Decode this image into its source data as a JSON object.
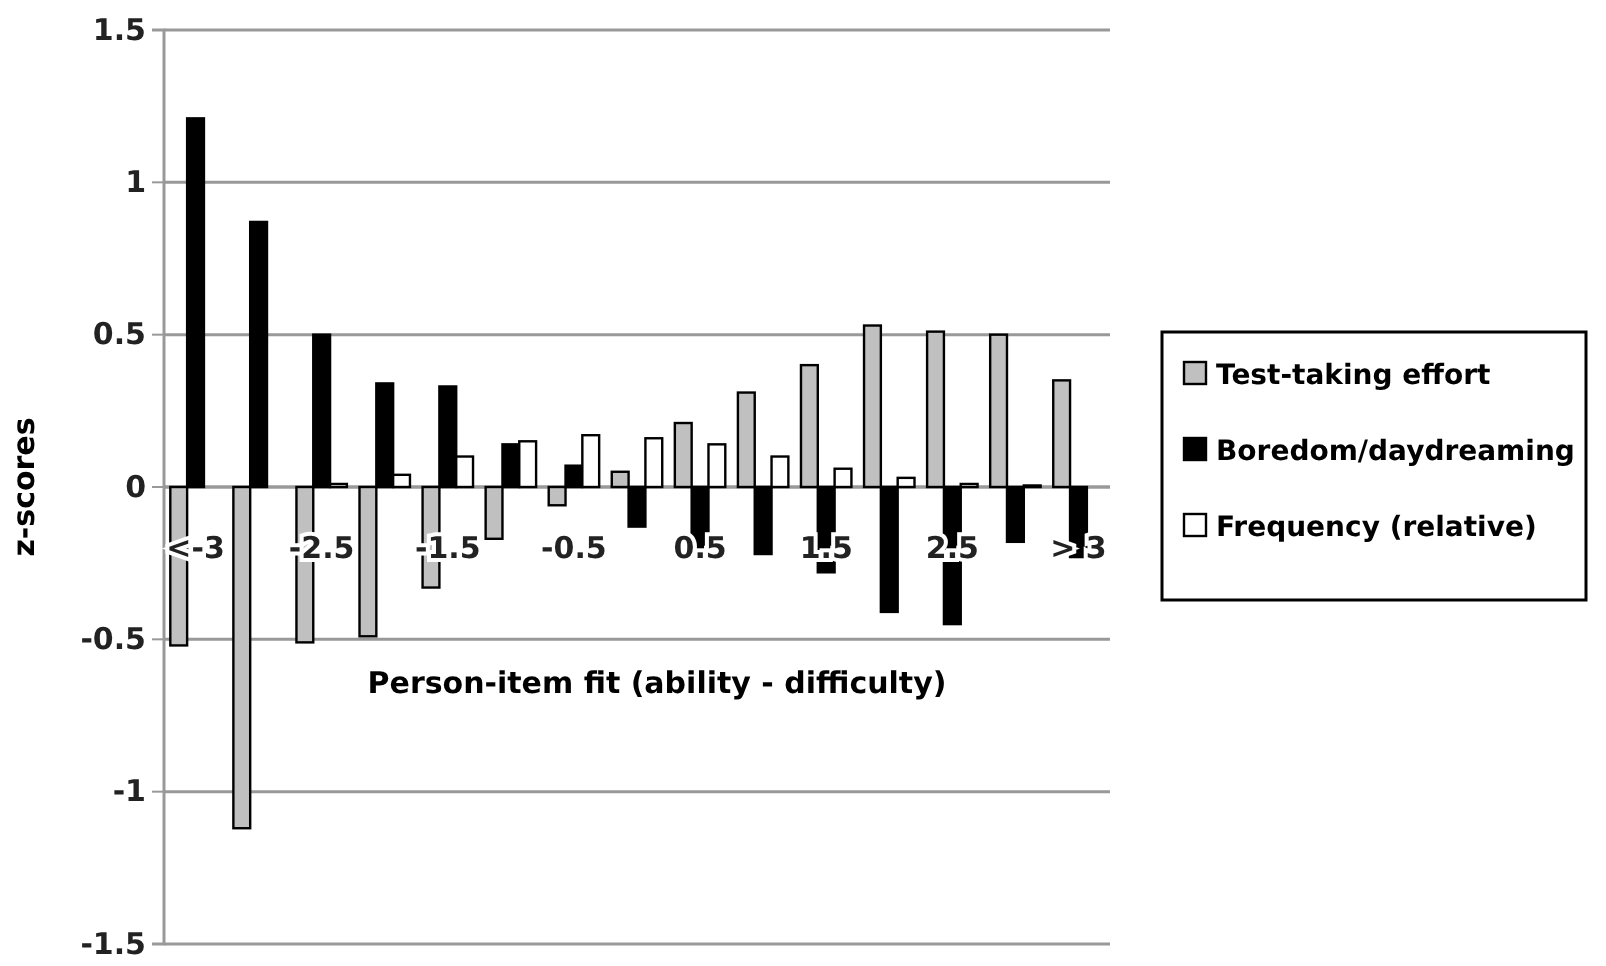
{
  "chart_data": {
    "type": "bar",
    "xlabel": "Person-item fit (ability - difficulty)",
    "ylabel": "z-scores",
    "categories": [
      "<-3",
      null,
      "-2.5",
      null,
      "-1.5",
      null,
      "-0.5",
      null,
      "0.5",
      null,
      "1.5",
      null,
      "2.5",
      null,
      "> 3"
    ],
    "series": [
      {
        "name": "Test-taking effort",
        "color": "#c0c0c0",
        "values": [
          -0.52,
          -1.12,
          -0.51,
          -0.49,
          -0.33,
          -0.17,
          -0.06,
          0.05,
          0.21,
          0.31,
          0.4,
          0.53,
          0.51,
          0.5,
          0.35
        ]
      },
      {
        "name": "Boredom/daydreaming",
        "color": "#000000",
        "values": [
          1.21,
          0.87,
          0.5,
          0.34,
          0.33,
          0.14,
          0.07,
          -0.13,
          -0.22,
          -0.22,
          -0.28,
          -0.41,
          -0.45,
          -0.18,
          -0.23
        ]
      },
      {
        "name": "Frequency (relative)",
        "color": "#ffffff",
        "values": [
          0,
          0,
          0.01,
          0.04,
          0.1,
          0.15,
          0.17,
          0.16,
          0.14,
          0.1,
          0.06,
          0.03,
          0.01,
          0.005,
          0
        ]
      }
    ],
    "ylim": [
      -1.5,
      1.5
    ],
    "yticks": [
      -1.5,
      -1,
      -0.5,
      0,
      0.5,
      1,
      1.5
    ],
    "grid": "y",
    "legend": "right"
  }
}
